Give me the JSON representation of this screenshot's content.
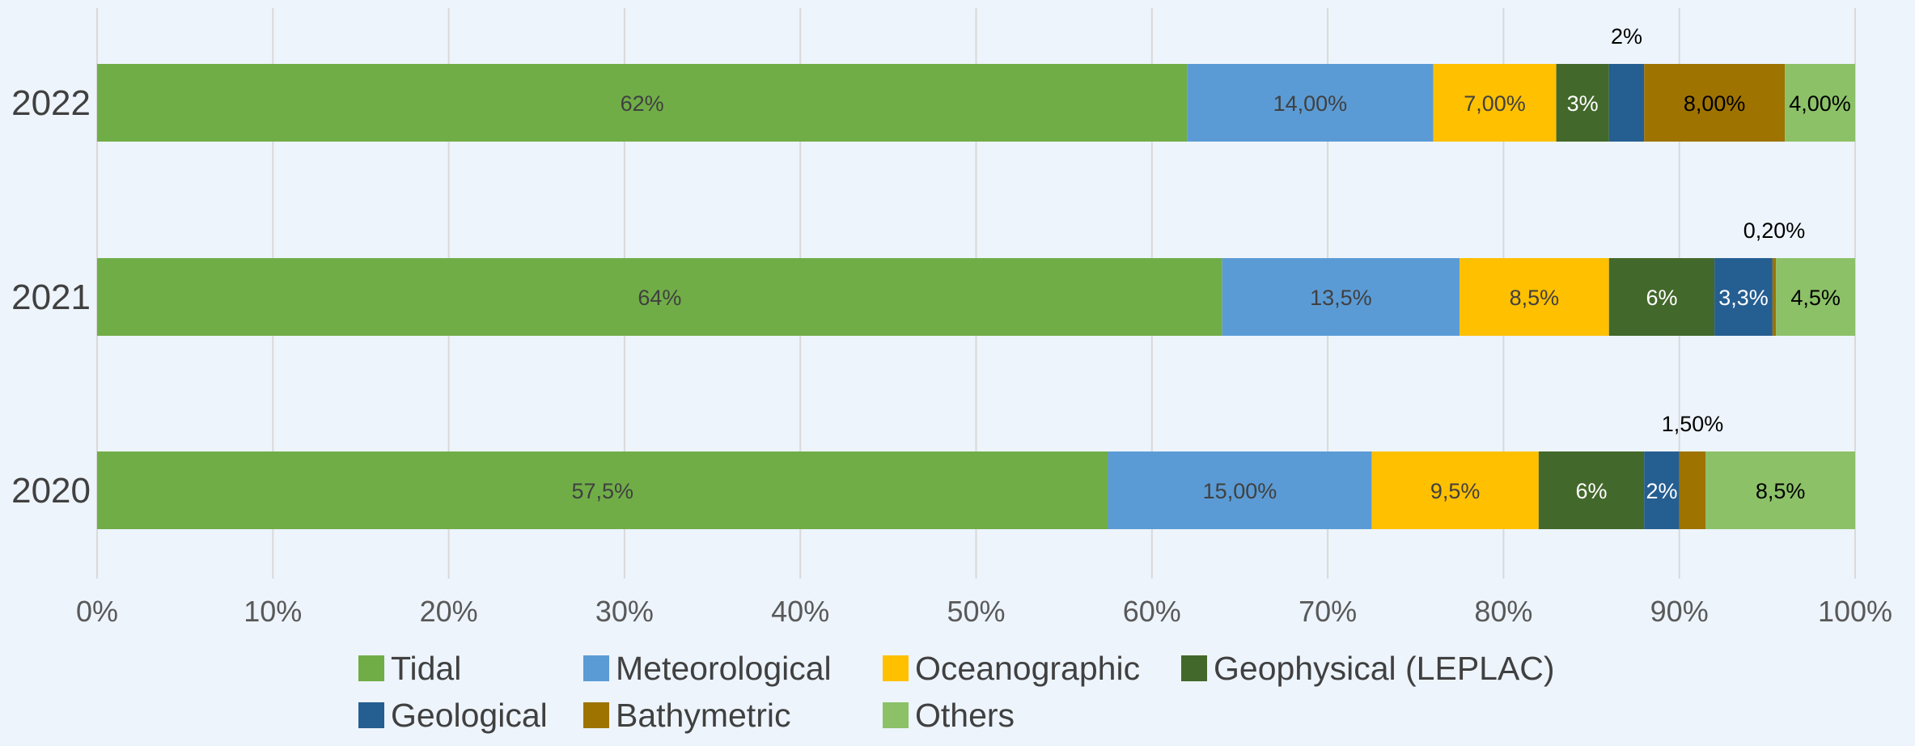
{
  "chart_data": {
    "type": "bar",
    "orientation": "horizontal",
    "stacked": true,
    "title": "",
    "xlabel": "",
    "ylabel": "",
    "xlim": [
      0,
      100
    ],
    "grid": true,
    "legend_position": "bottom",
    "x_ticks": [
      "0%",
      "10%",
      "20%",
      "30%",
      "40%",
      "50%",
      "60%",
      "70%",
      "80%",
      "90%",
      "100%"
    ],
    "categories": [
      "2022",
      "2021",
      "2020"
    ],
    "series": [
      {
        "name": "Tidal",
        "color": "#70ad47",
        "label_color": "#404040",
        "values": [
          62,
          64,
          57.5
        ],
        "labels": [
          "62%",
          "64%",
          "57,5%"
        ]
      },
      {
        "name": "Meteorological",
        "color": "#5b9bd5",
        "label_color": "#404040",
        "values": [
          14,
          13.5,
          15
        ],
        "labels": [
          "14,00%",
          "13,5%",
          "15,00%"
        ]
      },
      {
        "name": "Oceanographic",
        "color": "#ffc000",
        "label_color": "#404040",
        "values": [
          7,
          8.5,
          9.5
        ],
        "labels": [
          "7,00%",
          "8,5%",
          "9,5%"
        ]
      },
      {
        "name": "Geophysical (LEPLAC)",
        "color": "#43682b",
        "label_color": "#ffffff",
        "values": [
          3,
          6,
          6
        ],
        "labels": [
          "3%",
          "6%",
          "6%"
        ]
      },
      {
        "name": "Geological",
        "color": "#255e91",
        "label_color": "#ffffff",
        "values": [
          2,
          3.3,
          2
        ],
        "labels": [
          "2%",
          "3,3%",
          "2%"
        ],
        "label_outside": [
          true,
          false,
          false
        ]
      },
      {
        "name": "Bathymetric",
        "color": "#9e7300",
        "label_color": "#000000",
        "values": [
          8,
          0.2,
          1.5
        ],
        "labels": [
          "8,00%",
          "0,20%",
          "1,50%"
        ],
        "label_outside": [
          false,
          true,
          true
        ]
      },
      {
        "name": "Others",
        "color": "#8cc168",
        "label_color": "#000000",
        "values": [
          4,
          4.5,
          8.5
        ],
        "labels": [
          "4,00%",
          "4,5%",
          "8,5%"
        ]
      }
    ]
  }
}
